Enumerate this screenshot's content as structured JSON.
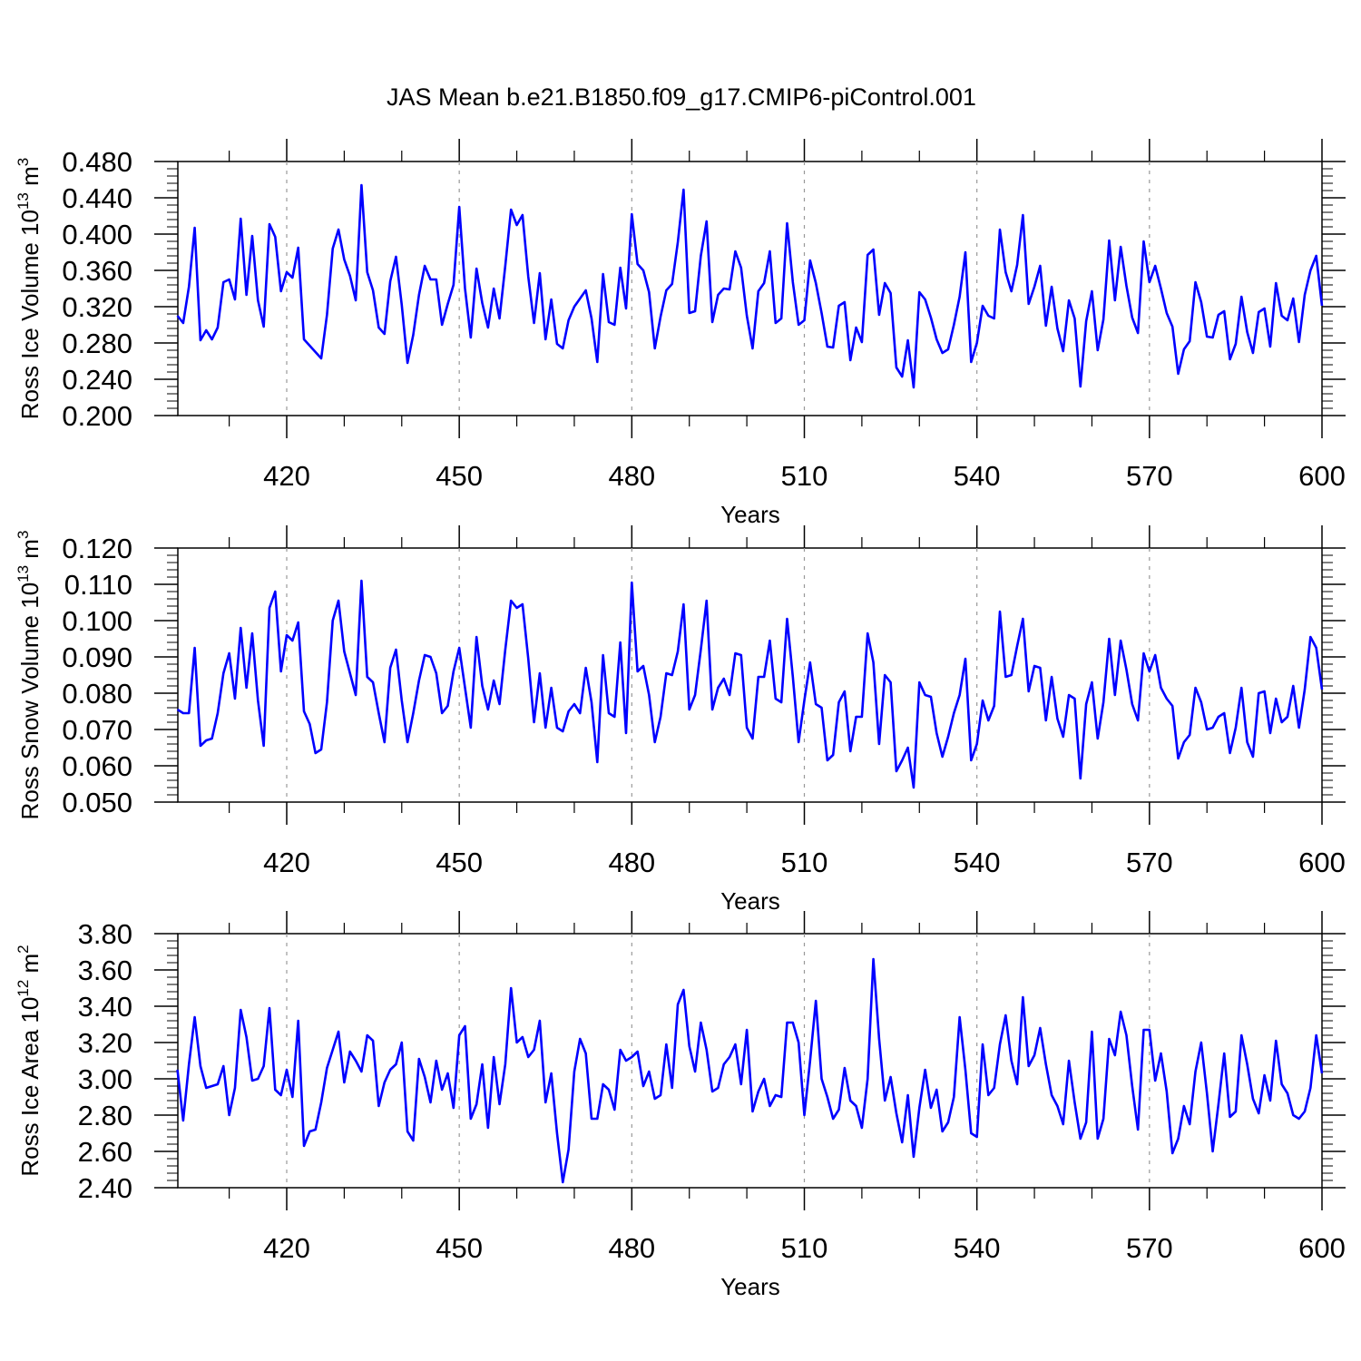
{
  "title": "JAS Mean b.e21.B1850.f09_g17.CMIP6-piControl.001",
  "line_color": "#0000ff",
  "chart_data": [
    {
      "type": "line",
      "ylabel": "Ross Ice Volume 10",
      "ylabel_exp": "13",
      "ylabel_unit": " m",
      "ylabel_unit_exp": "3",
      "xlabel": "Years",
      "xlim": [
        401,
        600
      ],
      "ylim": [
        0.2,
        0.48
      ],
      "yticks": [
        "0.200",
        "0.240",
        "0.280",
        "0.320",
        "0.360",
        "0.400",
        "0.440",
        "0.480"
      ],
      "xticks": [
        "420",
        "450",
        "480",
        "510",
        "540",
        "570",
        "600"
      ],
      "grid_x": "dashed vertical at major ticks",
      "x_start": 401,
      "values": [
        0.31,
        0.302,
        0.342,
        0.407,
        0.283,
        0.294,
        0.284,
        0.297,
        0.347,
        0.35,
        0.328,
        0.417,
        0.333,
        0.398,
        0.327,
        0.298,
        0.411,
        0.397,
        0.337,
        0.358,
        0.352,
        0.385,
        0.284,
        0.277,
        0.27,
        0.263,
        0.311,
        0.384,
        0.405,
        0.372,
        0.354,
        0.327,
        0.454,
        0.358,
        0.338,
        0.297,
        0.29,
        0.348,
        0.375,
        0.322,
        0.258,
        0.289,
        0.333,
        0.365,
        0.35,
        0.35,
        0.3,
        0.323,
        0.344,
        0.43,
        0.34,
        0.286,
        0.362,
        0.324,
        0.297,
        0.34,
        0.307,
        0.365,
        0.427,
        0.41,
        0.421,
        0.353,
        0.302,
        0.357,
        0.284,
        0.328,
        0.279,
        0.274,
        0.305,
        0.32,
        0.329,
        0.338,
        0.307,
        0.259,
        0.356,
        0.303,
        0.3,
        0.363,
        0.318,
        0.422,
        0.367,
        0.36,
        0.336,
        0.274,
        0.309,
        0.338,
        0.345,
        0.391,
        0.449,
        0.313,
        0.315,
        0.376,
        0.414,
        0.303,
        0.333,
        0.34,
        0.339,
        0.381,
        0.363,
        0.31,
        0.274,
        0.337,
        0.346,
        0.381,
        0.302,
        0.307,
        0.412,
        0.347,
        0.3,
        0.305,
        0.371,
        0.346,
        0.313,
        0.276,
        0.275,
        0.321,
        0.325,
        0.261,
        0.297,
        0.281,
        0.377,
        0.383,
        0.311,
        0.346,
        0.335,
        0.253,
        0.243,
        0.283,
        0.231,
        0.336,
        0.328,
        0.308,
        0.284,
        0.269,
        0.273,
        0.3,
        0.331,
        0.38,
        0.259,
        0.28,
        0.321,
        0.31,
        0.307,
        0.405,
        0.358,
        0.337,
        0.366,
        0.421,
        0.323,
        0.342,
        0.365,
        0.299,
        0.342,
        0.296,
        0.271,
        0.327,
        0.307,
        0.232,
        0.304,
        0.337,
        0.272,
        0.306,
        0.393,
        0.327,
        0.386,
        0.343,
        0.308,
        0.291,
        0.392,
        0.347,
        0.365,
        0.34,
        0.313,
        0.298,
        0.246,
        0.273,
        0.282,
        0.347,
        0.325,
        0.287,
        0.286,
        0.311,
        0.315,
        0.262,
        0.279,
        0.331,
        0.292,
        0.269,
        0.314,
        0.318,
        0.276,
        0.346,
        0.31,
        0.305,
        0.329,
        0.281,
        0.333,
        0.36,
        0.376,
        0.321
      ]
    },
    {
      "type": "line",
      "ylabel": "Ross Snow Volume 10",
      "ylabel_exp": "13",
      "ylabel_unit": " m",
      "ylabel_unit_exp": "3",
      "xlabel": "Years",
      "xlim": [
        401,
        600
      ],
      "ylim": [
        0.05,
        0.12
      ],
      "yticks": [
        "0.050",
        "0.060",
        "0.070",
        "0.080",
        "0.090",
        "0.100",
        "0.110",
        "0.120"
      ],
      "xticks": [
        "420",
        "450",
        "480",
        "510",
        "540",
        "570",
        "600"
      ],
      "grid_x": "dashed vertical at major ticks",
      "x_start": 401,
      "values": [
        0.0755,
        0.0745,
        0.0745,
        0.0925,
        0.0655,
        0.067,
        0.0675,
        0.0745,
        0.0855,
        0.091,
        0.0785,
        0.098,
        0.0815,
        0.0965,
        0.078,
        0.0655,
        0.1035,
        0.108,
        0.086,
        0.096,
        0.0945,
        0.0995,
        0.075,
        0.0715,
        0.0635,
        0.0645,
        0.0775,
        0.1,
        0.1055,
        0.0915,
        0.0855,
        0.0795,
        0.111,
        0.0845,
        0.083,
        0.0745,
        0.0665,
        0.087,
        0.092,
        0.078,
        0.0665,
        0.0745,
        0.0835,
        0.0905,
        0.09,
        0.0855,
        0.0745,
        0.0765,
        0.086,
        0.0925,
        0.0815,
        0.0705,
        0.0955,
        0.082,
        0.0755,
        0.0835,
        0.077,
        0.092,
        0.1055,
        0.1035,
        0.1045,
        0.0895,
        0.072,
        0.0855,
        0.0705,
        0.0815,
        0.0705,
        0.0695,
        0.075,
        0.077,
        0.0745,
        0.087,
        0.0775,
        0.061,
        0.0905,
        0.0745,
        0.0735,
        0.094,
        0.069,
        0.1105,
        0.086,
        0.0875,
        0.0795,
        0.0665,
        0.0735,
        0.0855,
        0.085,
        0.0915,
        0.1045,
        0.0755,
        0.0795,
        0.092,
        0.1055,
        0.0755,
        0.0815,
        0.084,
        0.0795,
        0.091,
        0.0905,
        0.0705,
        0.0675,
        0.0845,
        0.0845,
        0.0945,
        0.0785,
        0.0775,
        0.1005,
        0.0845,
        0.0665,
        0.078,
        0.0885,
        0.077,
        0.076,
        0.0615,
        0.063,
        0.0775,
        0.0805,
        0.064,
        0.0735,
        0.0735,
        0.0965,
        0.0885,
        0.066,
        0.085,
        0.083,
        0.0585,
        0.0615,
        0.065,
        0.054,
        0.083,
        0.0795,
        0.079,
        0.069,
        0.0625,
        0.068,
        0.0745,
        0.0795,
        0.0895,
        0.0615,
        0.066,
        0.078,
        0.0725,
        0.0765,
        0.1025,
        0.0845,
        0.085,
        0.093,
        0.1005,
        0.0805,
        0.0875,
        0.087,
        0.0725,
        0.0845,
        0.073,
        0.068,
        0.0795,
        0.0785,
        0.0565,
        0.077,
        0.083,
        0.0675,
        0.0775,
        0.095,
        0.0795,
        0.0945,
        0.0865,
        0.077,
        0.0725,
        0.091,
        0.086,
        0.0905,
        0.0815,
        0.0785,
        0.0765,
        0.062,
        0.0665,
        0.0685,
        0.0815,
        0.0775,
        0.07,
        0.0705,
        0.0735,
        0.0745,
        0.0635,
        0.0705,
        0.0815,
        0.0665,
        0.0625,
        0.08,
        0.0805,
        0.069,
        0.0785,
        0.072,
        0.0735,
        0.082,
        0.0705,
        0.081,
        0.0955,
        0.0925,
        0.081
      ]
    },
    {
      "type": "line",
      "ylabel": "Ross Ice Area 10",
      "ylabel_exp": "12",
      "ylabel_unit": " m",
      "ylabel_unit_exp": "2",
      "xlabel": "Years",
      "xlim": [
        401,
        600
      ],
      "ylim": [
        2.4,
        3.8
      ],
      "yticks": [
        "2.40",
        "2.60",
        "2.80",
        "3.00",
        "3.20",
        "3.40",
        "3.60",
        "3.80"
      ],
      "xticks": [
        "420",
        "450",
        "480",
        "510",
        "540",
        "570",
        "600"
      ],
      "grid_x": "dashed vertical at major ticks",
      "x_start": 401,
      "values": [
        3.05,
        2.77,
        3.08,
        3.34,
        3.07,
        2.95,
        2.96,
        2.97,
        3.07,
        2.8,
        2.95,
        3.38,
        3.23,
        2.99,
        3.0,
        3.07,
        3.39,
        2.94,
        2.91,
        3.05,
        2.9,
        3.32,
        2.63,
        2.71,
        2.72,
        2.87,
        3.06,
        3.16,
        3.26,
        2.98,
        3.15,
        3.1,
        3.04,
        3.24,
        3.21,
        2.85,
        2.98,
        3.05,
        3.08,
        3.2,
        2.71,
        2.66,
        3.11,
        3.01,
        2.87,
        3.1,
        2.94,
        3.03,
        2.84,
        3.24,
        3.29,
        2.78,
        2.86,
        3.08,
        2.73,
        3.12,
        2.86,
        3.08,
        3.5,
        3.2,
        3.23,
        3.12,
        3.16,
        3.32,
        2.87,
        3.03,
        2.7,
        2.43,
        2.61,
        3.04,
        3.22,
        3.14,
        2.78,
        2.78,
        2.97,
        2.94,
        2.83,
        3.16,
        3.1,
        3.12,
        3.15,
        2.96,
        3.04,
        2.89,
        2.91,
        3.19,
        2.95,
        3.41,
        3.49,
        3.18,
        3.04,
        3.31,
        3.16,
        2.93,
        2.95,
        3.08,
        3.12,
        3.19,
        2.97,
        3.27,
        2.82,
        2.93,
        3.0,
        2.85,
        2.91,
        2.9,
        3.31,
        3.31,
        3.2,
        2.8,
        3.1,
        3.43,
        3.0,
        2.9,
        2.78,
        2.83,
        3.06,
        2.88,
        2.85,
        2.73,
        3.0,
        3.66,
        3.22,
        2.88,
        3.01,
        2.81,
        2.65,
        2.91,
        2.57,
        2.84,
        3.05,
        2.84,
        2.94,
        2.71,
        2.76,
        2.9,
        3.34,
        3.05,
        2.7,
        2.68,
        3.19,
        2.91,
        2.95,
        3.19,
        3.35,
        3.1,
        2.97,
        3.45,
        3.07,
        3.13,
        3.28,
        3.08,
        2.91,
        2.85,
        2.75,
        3.1,
        2.87,
        2.67,
        2.76,
        3.26,
        2.67,
        2.78,
        3.22,
        3.13,
        3.37,
        3.24,
        2.96,
        2.72,
        3.27,
        3.27,
        2.99,
        3.14,
        2.93,
        2.59,
        2.67,
        2.85,
        2.75,
        3.04,
        3.2,
        2.92,
        2.6,
        2.86,
        3.14,
        2.79,
        2.82,
        3.24,
        3.08,
        2.89,
        2.81,
        3.02,
        2.88,
        3.21,
        2.97,
        2.92,
        2.8,
        2.78,
        2.82,
        2.95,
        3.24,
        3.03
      ]
    }
  ]
}
